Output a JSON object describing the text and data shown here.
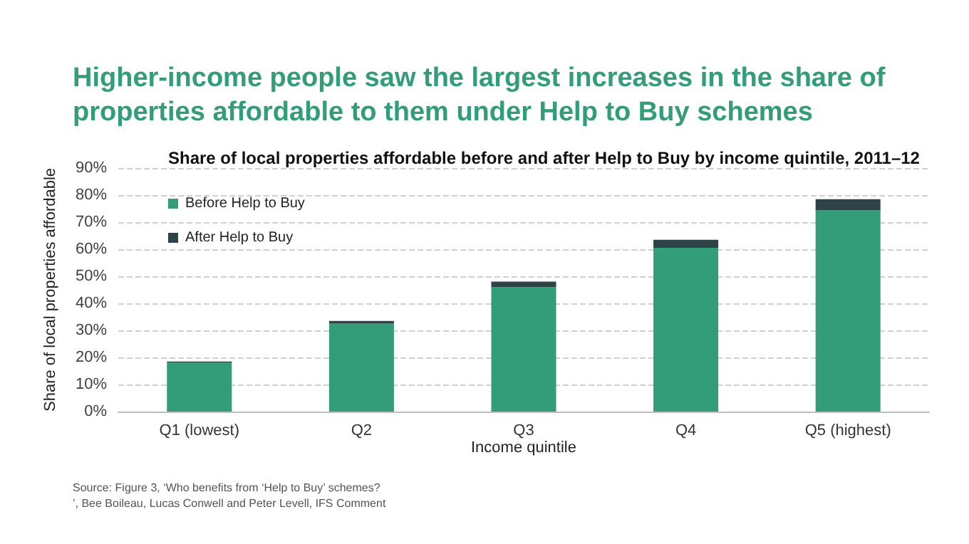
{
  "chart_data": {
    "type": "bar",
    "title": "Higher-income people saw the largest increases in the share of properties affordable to them under Help to Buy schemes",
    "subtitle": "Share of local properties affordable before and after Help to Buy by income quintile, 2011–12",
    "xlabel": "Income quintile",
    "ylabel": "Share of local properties affordable",
    "categories": [
      "Q1 (lowest)",
      "Q2",
      "Q3",
      "Q4",
      "Q5 (highest)"
    ],
    "series": [
      {
        "name": "Before Help to Buy",
        "color": "#339c78",
        "values": [
          18,
          32.5,
          46,
          60.5,
          74.5
        ]
      },
      {
        "name": "After Help to Buy",
        "color": "#2e4347",
        "values": [
          0.5,
          1,
          2,
          3,
          4
        ]
      }
    ],
    "stacked": true,
    "ylim": [
      0,
      90
    ],
    "yticks": [
      {
        "value": 0,
        "label": "0%"
      },
      {
        "value": 10,
        "label": "10%"
      },
      {
        "value": 20,
        "label": "20%"
      },
      {
        "value": 30,
        "label": "30%"
      },
      {
        "value": 40,
        "label": "40%"
      },
      {
        "value": 50,
        "label": "50%"
      },
      {
        "value": 60,
        "label": "60%"
      },
      {
        "value": 70,
        "label": "70%"
      },
      {
        "value": 80,
        "label": "80%"
      },
      {
        "value": 90,
        "label": "90%"
      }
    ],
    "grid": "y",
    "legend": "top left",
    "annotations": [
      "Source: Figure 3, ‘Who benefits from ‘Help to Buy’ schemes?’, Bee Boileau, Lucas Conwell and Peter Levell, IFS Comment"
    ]
  }
}
